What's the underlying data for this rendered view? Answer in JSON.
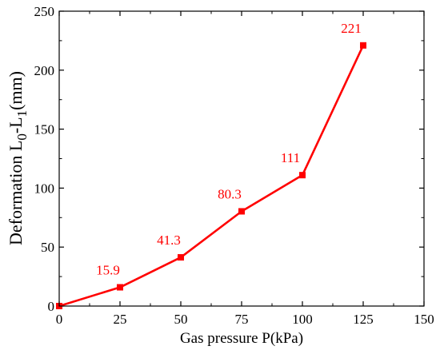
{
  "chart_data": {
    "type": "line",
    "title": "",
    "xlabel": "Gas pressure P(kPa)",
    "ylabel": {
      "main": "Deformation L",
      "sub1": "0",
      "mid": "-L",
      "sub2": "1",
      "tail": "(mm)"
    },
    "xlim": [
      0,
      150
    ],
    "ylim": [
      0,
      250
    ],
    "xticks": [
      "0",
      "25",
      "50",
      "75",
      "100",
      "125",
      "150"
    ],
    "yticks": [
      "0",
      "50",
      "100",
      "150",
      "200",
      "250"
    ],
    "grid": false,
    "series": [
      {
        "x": [
          0,
          25,
          50,
          75,
          100,
          125
        ],
        "y": [
          0,
          15.9,
          41.3,
          80.3,
          111,
          221
        ],
        "labels": [
          "",
          "15.9",
          "41.3",
          "80.3",
          "111",
          "221"
        ],
        "color": "#ff0000",
        "marker": "square"
      }
    ]
  }
}
